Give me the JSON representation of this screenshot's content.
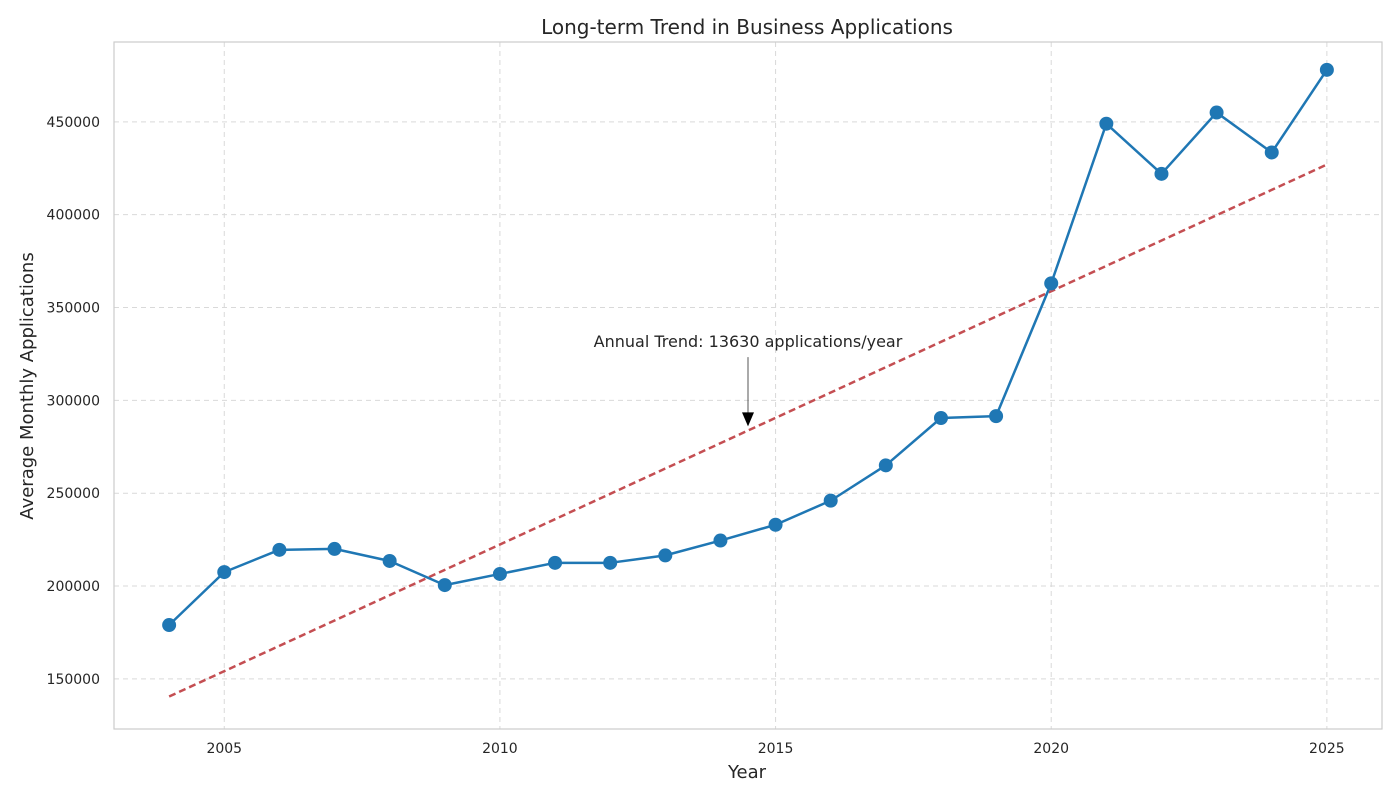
{
  "chart_data": {
    "type": "line",
    "title": "Long-term Trend in Business Applications",
    "xlabel": "Year",
    "ylabel": "Average Monthly Applications",
    "xlim": [
      2003,
      2026
    ],
    "ylim": [
      123000,
      493000
    ],
    "x_ticks": [
      2005,
      2010,
      2015,
      2020,
      2025
    ],
    "y_ticks": [
      150000,
      200000,
      250000,
      300000,
      350000,
      400000,
      450000
    ],
    "grid": true,
    "series": [
      {
        "color": "#1f77b4",
        "x": [
          2004,
          2005,
          2006,
          2007,
          2008,
          2009,
          2010,
          2011,
          2012,
          2013,
          2014,
          2015,
          2016,
          2017,
          2018,
          2019,
          2020,
          2021,
          2022,
          2023,
          2024,
          2025
        ],
        "values": [
          179000,
          207500,
          219500,
          220000,
          213500,
          200500,
          206500,
          212500,
          212500,
          216500,
          224500,
          233000,
          246000,
          265000,
          290500,
          291500,
          363000,
          449000,
          422000,
          455000,
          433500,
          478000
        ]
      }
    ],
    "trend_line": {
      "color": "#c44e52",
      "style": "dashed",
      "x": [
        2004,
        2025
      ],
      "values": [
        140500,
        427000
      ]
    },
    "annotation": {
      "text": "Annual Trend: 13630 applications/year",
      "arrow_target": [
        2014.5,
        286000
      ],
      "text_anchor_point": [
        2014.5,
        333000
      ]
    }
  }
}
